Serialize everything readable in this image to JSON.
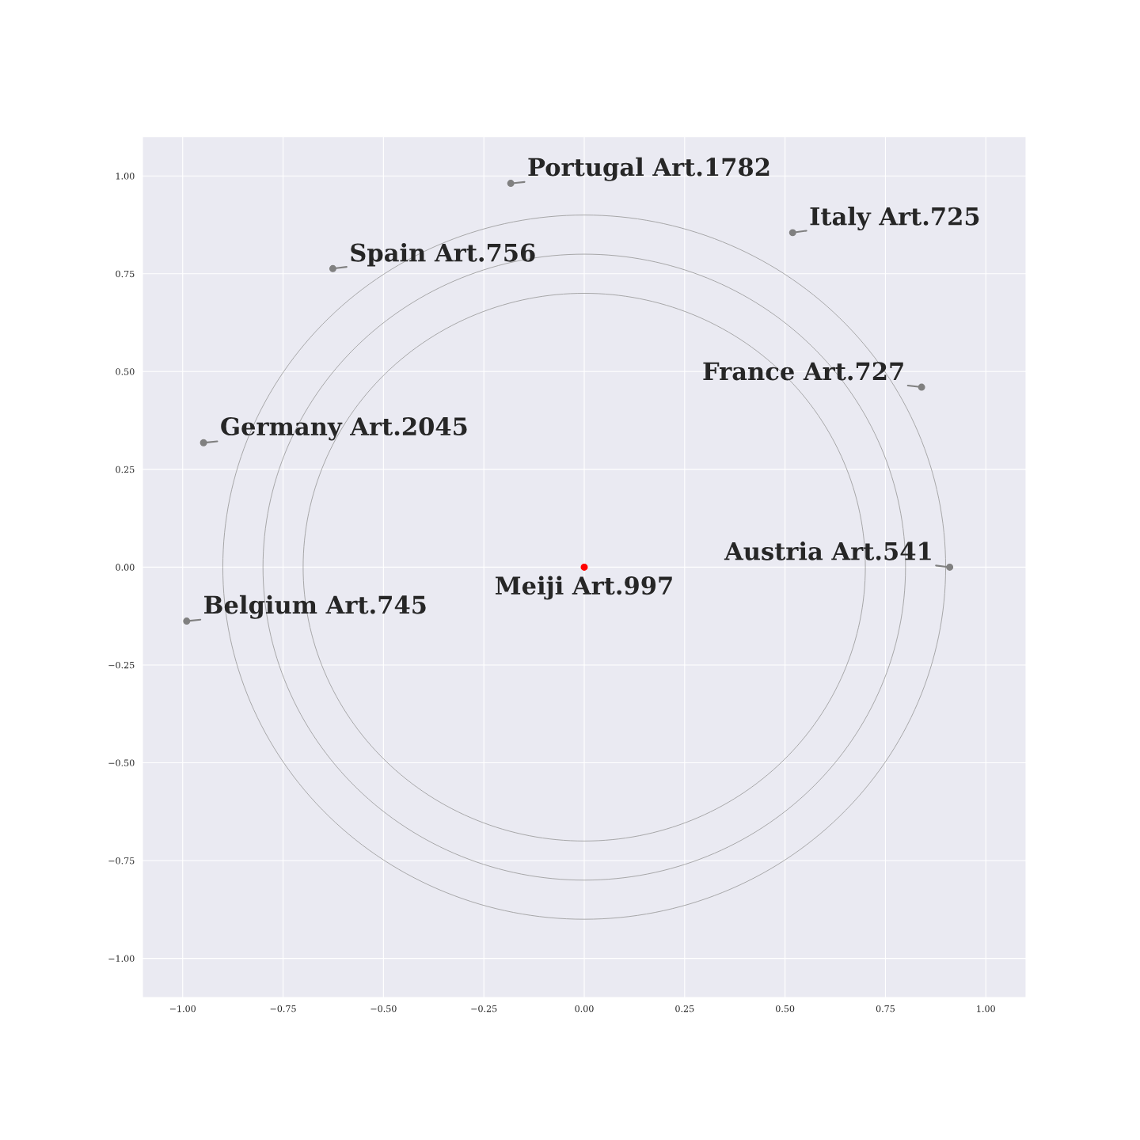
{
  "chart_data": {
    "type": "scatter",
    "xlim": [
      -1.1,
      1.1
    ],
    "ylim": [
      -1.1,
      1.1
    ],
    "xticks": [
      {
        "value": -1.0,
        "label": "−1.00"
      },
      {
        "value": -0.75,
        "label": "−0.75"
      },
      {
        "value": -0.5,
        "label": "−0.50"
      },
      {
        "value": -0.25,
        "label": "−0.25"
      },
      {
        "value": 0.0,
        "label": "0.00"
      },
      {
        "value": 0.25,
        "label": "0.25"
      },
      {
        "value": 0.5,
        "label": "0.50"
      },
      {
        "value": 0.75,
        "label": "0.75"
      },
      {
        "value": 1.0,
        "label": "1.00"
      }
    ],
    "yticks": [
      {
        "value": -1.0,
        "label": "−1.00"
      },
      {
        "value": -0.75,
        "label": "−0.75"
      },
      {
        "value": -0.5,
        "label": "−0.50"
      },
      {
        "value": -0.25,
        "label": "−0.25"
      },
      {
        "value": 0.0,
        "label": "0.00"
      },
      {
        "value": 0.25,
        "label": "0.25"
      },
      {
        "value": 0.5,
        "label": "0.50"
      },
      {
        "value": 0.75,
        "label": "0.75"
      },
      {
        "value": 1.0,
        "label": "1.00"
      }
    ],
    "grid": true,
    "marker": "circle",
    "series": [
      {
        "type": "scatter",
        "color": "#808080",
        "x": [
          -0.183,
          0.519,
          -0.626,
          0.84,
          -0.948,
          0.91,
          -0.99
        ],
        "values": [
          0.981,
          0.855,
          0.763,
          0.46,
          0.318,
          0.0,
          -0.138
        ]
      },
      {
        "color": "#ff0000",
        "x": [
          0.0
        ],
        "values": [
          0.0
        ]
      }
    ],
    "annotations": [
      {
        "text": "Portugal Art.1782",
        "x": -0.183,
        "y": 0.981
      },
      {
        "text": "Italy Art.725",
        "x": 0.519,
        "y": 0.855
      },
      {
        "text": "Spain Art.756",
        "x": -0.626,
        "y": 0.763
      },
      {
        "text": "France Art.727",
        "x": 0.84,
        "y": 0.46
      },
      {
        "text": "Germany Art.2045",
        "x": -0.948,
        "y": 0.318
      },
      {
        "text": "Austria Art.541",
        "x": 0.91,
        "y": 0.0
      },
      {
        "text": "Belgium Art.745",
        "x": -0.99,
        "y": -0.138
      },
      {
        "text": "Meiji Art.997",
        "x": 0.0,
        "y": 0.0
      }
    ]
  }
}
